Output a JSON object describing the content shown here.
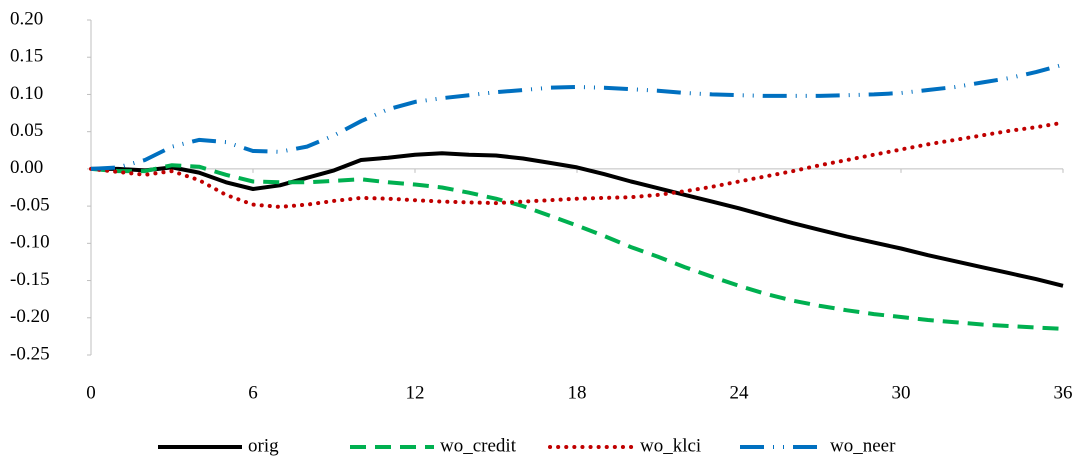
{
  "chart_data": {
    "type": "line",
    "x": [
      0,
      1,
      2,
      3,
      4,
      5,
      6,
      7,
      8,
      9,
      10,
      11,
      12,
      13,
      14,
      15,
      16,
      17,
      18,
      19,
      20,
      21,
      22,
      23,
      24,
      25,
      26,
      27,
      28,
      29,
      30,
      31,
      32,
      33,
      34,
      35,
      36
    ],
    "series": [
      {
        "name": "orig",
        "color": "#000000",
        "values": [
          0,
          0,
          -0.002,
          0.002,
          -0.005,
          -0.018,
          -0.027,
          -0.022,
          -0.012,
          -0.002,
          0.012,
          0.015,
          0.019,
          0.021,
          0.019,
          0.018,
          0.014,
          0.008,
          0.002,
          -0.007,
          -0.017,
          -0.026,
          -0.035,
          -0.044,
          -0.053,
          -0.063,
          -0.073,
          -0.082,
          -0.091,
          -0.099,
          -0.107,
          -0.116,
          -0.124,
          -0.132,
          -0.14,
          -0.148,
          -0.157
        ]
      },
      {
        "name": "wo_credit",
        "color": "#00b050",
        "values": [
          0,
          -0.003,
          -0.003,
          0.005,
          0.003,
          -0.008,
          -0.017,
          -0.018,
          -0.018,
          -0.016,
          -0.014,
          -0.018,
          -0.021,
          -0.025,
          -0.032,
          -0.04,
          -0.05,
          -0.063,
          -0.076,
          -0.09,
          -0.105,
          -0.118,
          -0.132,
          -0.145,
          -0.157,
          -0.168,
          -0.177,
          -0.184,
          -0.19,
          -0.195,
          -0.199,
          -0.203,
          -0.206,
          -0.209,
          -0.211,
          -0.213,
          -0.215
        ]
      },
      {
        "name": "wo_klci",
        "color": "#c00000",
        "values": [
          0,
          -0.004,
          -0.008,
          -0.003,
          -0.015,
          -0.035,
          -0.048,
          -0.051,
          -0.048,
          -0.043,
          -0.039,
          -0.04,
          -0.042,
          -0.044,
          -0.045,
          -0.046,
          -0.044,
          -0.042,
          -0.04,
          -0.039,
          -0.038,
          -0.035,
          -0.03,
          -0.024,
          -0.017,
          -0.01,
          -0.003,
          0.005,
          0.012,
          0.019,
          0.026,
          0.033,
          0.039,
          0.045,
          0.051,
          0.056,
          0.062
        ]
      },
      {
        "name": "wo_neer",
        "color": "#0070c0",
        "values": [
          0,
          0.002,
          0.012,
          0.03,
          0.039,
          0.036,
          0.024,
          0.023,
          0.03,
          0.045,
          0.064,
          0.08,
          0.09,
          0.095,
          0.099,
          0.103,
          0.106,
          0.109,
          0.11,
          0.109,
          0.107,
          0.105,
          0.102,
          0.1,
          0.099,
          0.098,
          0.098,
          0.098,
          0.099,
          0.1,
          0.102,
          0.106,
          0.11,
          0.116,
          0.122,
          0.13,
          0.14
        ]
      }
    ],
    "xlim": [
      0,
      36
    ],
    "xticks": [
      0,
      6,
      12,
      18,
      24,
      30,
      36
    ],
    "ylim": [
      -0.25,
      0.2
    ],
    "yticks": [
      {
        "value": -0.25,
        "label": "-0.25"
      },
      {
        "value": -0.2,
        "label": "-0.20"
      },
      {
        "value": -0.15,
        "label": "-0.15"
      },
      {
        "value": -0.1,
        "label": "-0.10"
      },
      {
        "value": -0.05,
        "label": "-0.05"
      },
      {
        "value": 0,
        "label": "0.00"
      },
      {
        "value": 0.05,
        "label": "0.05"
      },
      {
        "value": 0.1,
        "label": "0.10"
      },
      {
        "value": 0.15,
        "label": "0.15"
      },
      {
        "value": 0.2,
        "label": "0.20"
      }
    ],
    "grid": false,
    "legend": "bottom"
  }
}
